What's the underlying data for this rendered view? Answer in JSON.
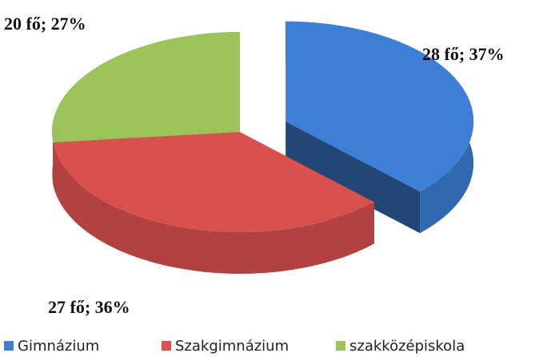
{
  "chart_data": {
    "type": "pie",
    "categories": [
      "Gimnázium",
      "Szakgimnázium",
      "szakközépiskola"
    ],
    "values": [
      28,
      27,
      20
    ],
    "value_labels": [
      "28 fő; 37%",
      "27 fő; 36%",
      "20 fő; 27%"
    ],
    "colors": [
      "#3d7fd6",
      "#d9514f",
      "#9dc35b"
    ],
    "legend": "bottom"
  }
}
